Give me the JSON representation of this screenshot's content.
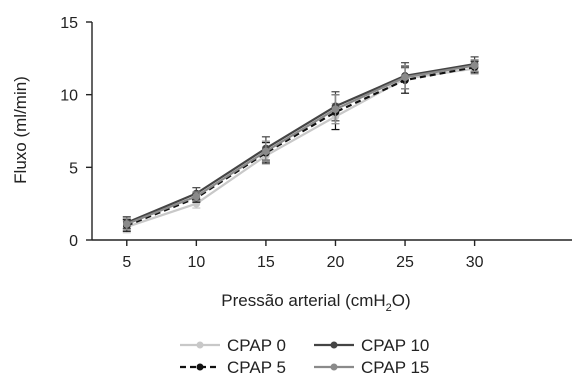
{
  "chart_data": {
    "type": "line",
    "title": "",
    "xlabel": {
      "main": "Pressão arterial (cmH",
      "sub": "2",
      "tail": "O)"
    },
    "ylabel": "Fluxo (ml/min)",
    "x": [
      5,
      10,
      15,
      20,
      25,
      30
    ],
    "x_ticks": [
      "5",
      "10",
      "15",
      "20",
      "25",
      "30"
    ],
    "y_ticks": [
      "0",
      "5",
      "10",
      "15"
    ],
    "xlim": [
      2.5,
      37
    ],
    "ylim": [
      0,
      15
    ],
    "grid": false,
    "legend_position": "bottom-center",
    "series": [
      {
        "name": "CPAP 0",
        "values": [
          0.9,
          2.5,
          5.8,
          8.5,
          11.1,
          11.8
        ],
        "errors": [
          0.4,
          0.3,
          0.6,
          0.9,
          0.7,
          0.4
        ],
        "color": "#c8c8c8",
        "dash": false
      },
      {
        "name": "CPAP 5",
        "values": [
          1.0,
          2.9,
          6.0,
          8.8,
          11.0,
          11.9
        ],
        "errors": [
          0.4,
          0.3,
          0.7,
          1.2,
          0.9,
          0.4
        ],
        "color": "#111111",
        "dash": true
      },
      {
        "name": "CPAP 10",
        "values": [
          1.2,
          3.2,
          6.3,
          9.2,
          11.3,
          12.1
        ],
        "errors": [
          0.4,
          0.4,
          0.8,
          1.0,
          0.9,
          0.5
        ],
        "color": "#444444",
        "dash": false
      },
      {
        "name": "CPAP 15",
        "values": [
          1.1,
          3.0,
          6.1,
          9.0,
          11.2,
          12.0
        ],
        "errors": [
          0.4,
          0.3,
          0.7,
          1.0,
          0.8,
          0.4
        ],
        "color": "#8a8a8a",
        "dash": false
      }
    ]
  }
}
